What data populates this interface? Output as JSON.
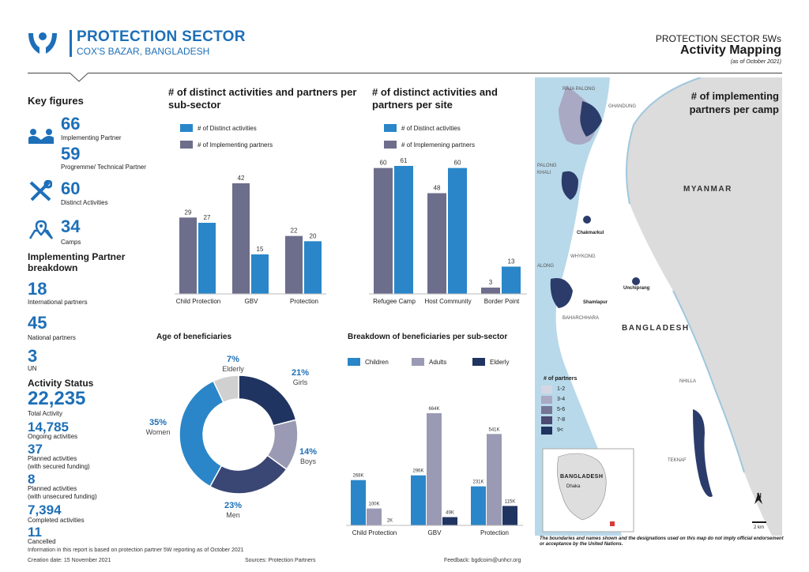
{
  "header": {
    "org_title": "PROTECTION SECTOR",
    "org_subtitle": "COX'S BAZAR, BANGLADESH",
    "report_line1": "PROTECTION SECTOR 5Ws",
    "report_line2": "Activity Mapping",
    "report_line3": "(as of October 2021)"
  },
  "key_figures": {
    "title": "Key figures",
    "implementing_partner": {
      "value": "66",
      "label": "Implementing Partner"
    },
    "technical_partner": {
      "value": "59",
      "label": "Progremme/ Technical Partner"
    },
    "distinct_activities": {
      "value": "60",
      "label": "Distinct Activities"
    },
    "camps": {
      "value": "34",
      "label": "Camps"
    }
  },
  "breakdown": {
    "title_line1": "Implementing Partner",
    "title_line2": "breakdown",
    "international": {
      "value": "18",
      "label": "International partners"
    },
    "national": {
      "value": "45",
      "label": "National partners"
    },
    "un": {
      "value": "3",
      "label": "UN"
    }
  },
  "activity_status": {
    "title": "Activity Status",
    "total": {
      "value": "22,235",
      "label": "Total Activity"
    },
    "ongoing": {
      "value": "14,785",
      "label": "Ongoing activities"
    },
    "planned_secured": {
      "value": "37",
      "label1": "Planned activities",
      "label2": "(with secured funding)"
    },
    "planned_unsecured": {
      "value": "8",
      "label1": "Planned activities",
      "label2": "(with unsecured funding)"
    },
    "completed": {
      "value": "7,394",
      "label": "Completed activities"
    },
    "cancelled": {
      "value": "11",
      "label": "Cancelled"
    }
  },
  "colors": {
    "blue": "#2a86c8",
    "slate": "#6d6d8c",
    "navy": "#1f3460",
    "lavender": "#9a9ab5",
    "light_gray": "#d0d0d0",
    "dark_blue_text": "#1d6fb8"
  },
  "chart_data": [
    {
      "type": "bar",
      "title": "# of distinct activities and partners per sub-sector",
      "categories": [
        "Child Protection",
        "GBV",
        "Protection"
      ],
      "series": [
        {
          "name": "# of Implementing partners",
          "values": [
            29,
            42,
            22
          ]
        },
        {
          "name": "# of Distinct activities",
          "values": [
            27,
            15,
            20
          ]
        }
      ],
      "legend": [
        "# of Distinct activities",
        "# of Implementing partners"
      ]
    },
    {
      "type": "bar",
      "title": "# of distinct activities and partners per site",
      "categories": [
        "Refugee Camp",
        "Host Community",
        "Border Point"
      ],
      "series": [
        {
          "name": "# of Implemening partners",
          "values": [
            60,
            48,
            3
          ]
        },
        {
          "name": "# of Distinct activities",
          "values": [
            61,
            60,
            13
          ]
        }
      ],
      "legend": [
        "# of Distinct activities",
        "# of Implemening partners"
      ]
    },
    {
      "type": "pie",
      "title": "Age of beneficiaries",
      "slices": [
        {
          "label": "Girls",
          "pct": "21%",
          "value": 21
        },
        {
          "label": "Boys",
          "pct": "14%",
          "value": 14
        },
        {
          "label": "Men",
          "pct": "23%",
          "value": 23
        },
        {
          "label": "Women",
          "pct": "35%",
          "value": 35
        },
        {
          "label": "Elderly",
          "pct": "7%",
          "value": 7
        }
      ]
    },
    {
      "type": "bar",
      "title": "Breakdown of beneficiaries per sub-sector",
      "categories": [
        "Child Protection",
        "GBV",
        "Protection"
      ],
      "series": [
        {
          "name": "Children",
          "values": [
            268,
            296,
            231
          ],
          "labels": [
            "268K",
            "296K",
            "231K"
          ]
        },
        {
          "name": "Adults",
          "values": [
            100,
            664,
            541
          ],
          "labels": [
            "100K",
            "664K",
            "541K"
          ]
        },
        {
          "name": "Elderly",
          "values": [
            2,
            49,
            115
          ],
          "labels": [
            "2K",
            "49K",
            "115K"
          ]
        }
      ]
    }
  ],
  "map": {
    "title_line1": "# of implementing",
    "title_line2": "partners per camp",
    "labels": {
      "raja_palong": "RAJA PALONG",
      "ghandung": "GHANDUNG",
      "palong_khali1": "PALONG",
      "palong_khali2": "KHALI",
      "myanmar": "MYANMAR",
      "chakmarkul": "Chakmarkul",
      "whykong": "WHYKONG",
      "along": "ALONG",
      "shamlapur": "Shamlapur",
      "unchiprang": "Unchiprang",
      "baharchhara": "BAHARCHHARA",
      "bangladesh": "BANGLADESH",
      "nhilla": "NHILLA",
      "teknaf": "TEKNAF",
      "inset_country": "BANGLADESH",
      "inset_capital": "Dhaka",
      "north": "N",
      "scale": "2 km"
    },
    "legend_title": "# of partners",
    "legend": [
      "1-2",
      "3-4",
      "5-6",
      "7-8",
      "9<"
    ],
    "note": "The boundaries and names shown and the designations used on this map do not imply official endorsement or acceptance by the United Nations."
  },
  "footer": {
    "info": "Information in this report is based on protection partner 5W reporting as of October 2021",
    "creation": "Creation date: 15 November 2021",
    "sources": "Sources: Protection Partners",
    "feedback": "Feedback: bgdcoim@unhcr.org"
  }
}
